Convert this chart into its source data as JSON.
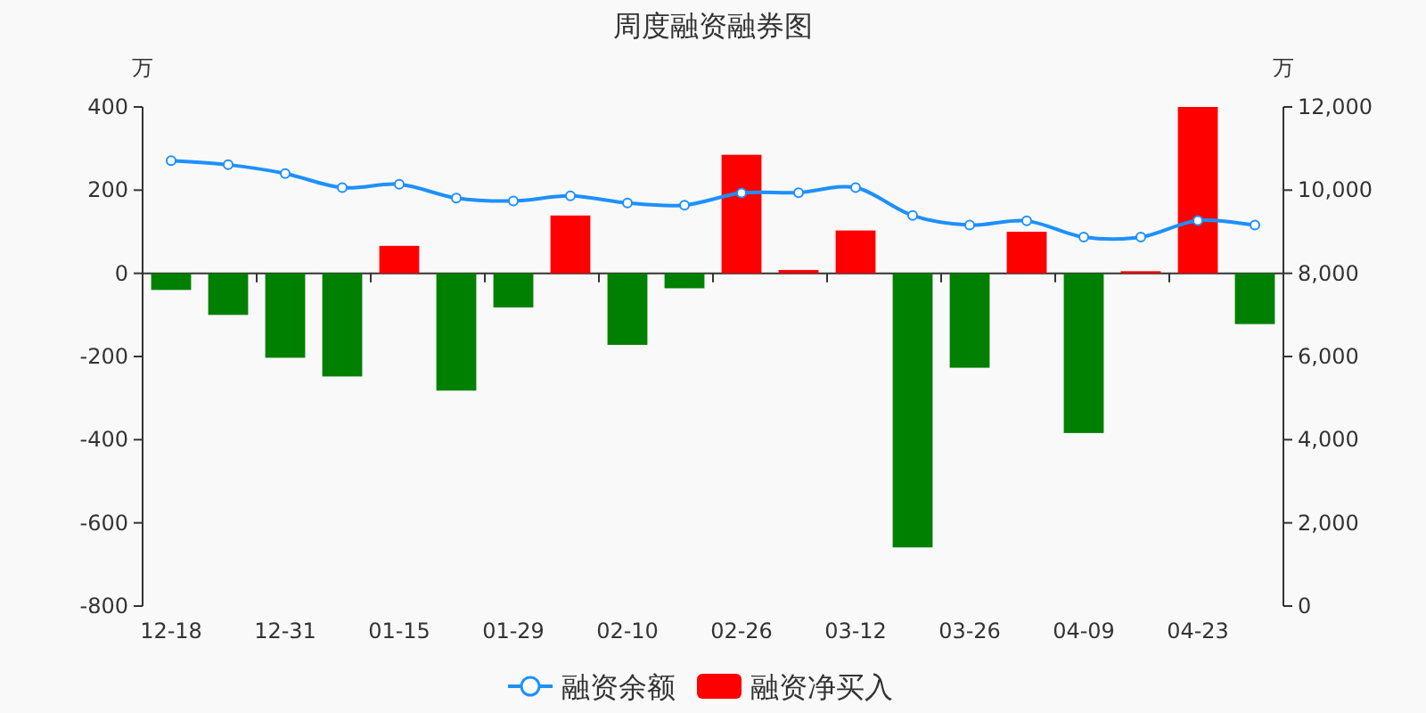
{
  "chart_data": {
    "type": "bar",
    "title": "周度融资融券图",
    "ylabel": "万",
    "y2label": "万",
    "categories": [
      "12-18",
      null,
      "12-31",
      null,
      "01-15",
      null,
      "01-29",
      null,
      "02-10",
      null,
      "02-26",
      null,
      "03-12",
      null,
      "03-26",
      null,
      "04-09",
      null,
      "04-23",
      null
    ],
    "series": [
      {
        "name": "融资余额",
        "type": "line",
        "axis": "y2",
        "color": "#1e90ff",
        "marker": "circle",
        "values": [
          10710,
          10610,
          10400,
          10060,
          10140,
          9810,
          9740,
          9860,
          9690,
          9640,
          9930,
          9940,
          10060,
          9390,
          9160,
          9260,
          8870,
          8870,
          9270,
          9160
        ]
      },
      {
        "name": "融资净买入",
        "color": "#ff0000",
        "colors": [
          "#008000",
          "#008000",
          "#008000",
          "#008000",
          "#ff0000",
          "#008000",
          "#008000",
          "#ff0000",
          "#008000",
          "#008000",
          "#ff0000",
          "#ff0000",
          "#ff0000",
          "#008000",
          "#008000",
          "#ff0000",
          "#008000",
          "#ff0000",
          "#ff0000",
          "#008000"
        ],
        "values": [
          -40,
          -100,
          -203,
          -248,
          66,
          -282,
          -82,
          139,
          -172,
          -36,
          285,
          8,
          103,
          -659,
          -227,
          100,
          -384,
          5,
          400,
          -122
        ]
      }
    ],
    "ylim": [
      -800,
      400
    ],
    "yticks": [
      -800,
      -600,
      -400,
      -200,
      0,
      200,
      400
    ],
    "y2lim": [
      0,
      12000
    ],
    "y2ticks": [
      {
        "value": 0,
        "label": "0"
      },
      {
        "value": 2000,
        "label": "2,000"
      },
      {
        "value": 4000,
        "label": "4,000"
      },
      {
        "value": 6000,
        "label": "6,000"
      },
      {
        "value": 8000,
        "label": "8,000"
      },
      {
        "value": 10000,
        "label": "10,000"
      },
      {
        "value": 12000,
        "label": "12,000"
      }
    ],
    "grid": false,
    "legend": "bottom"
  }
}
